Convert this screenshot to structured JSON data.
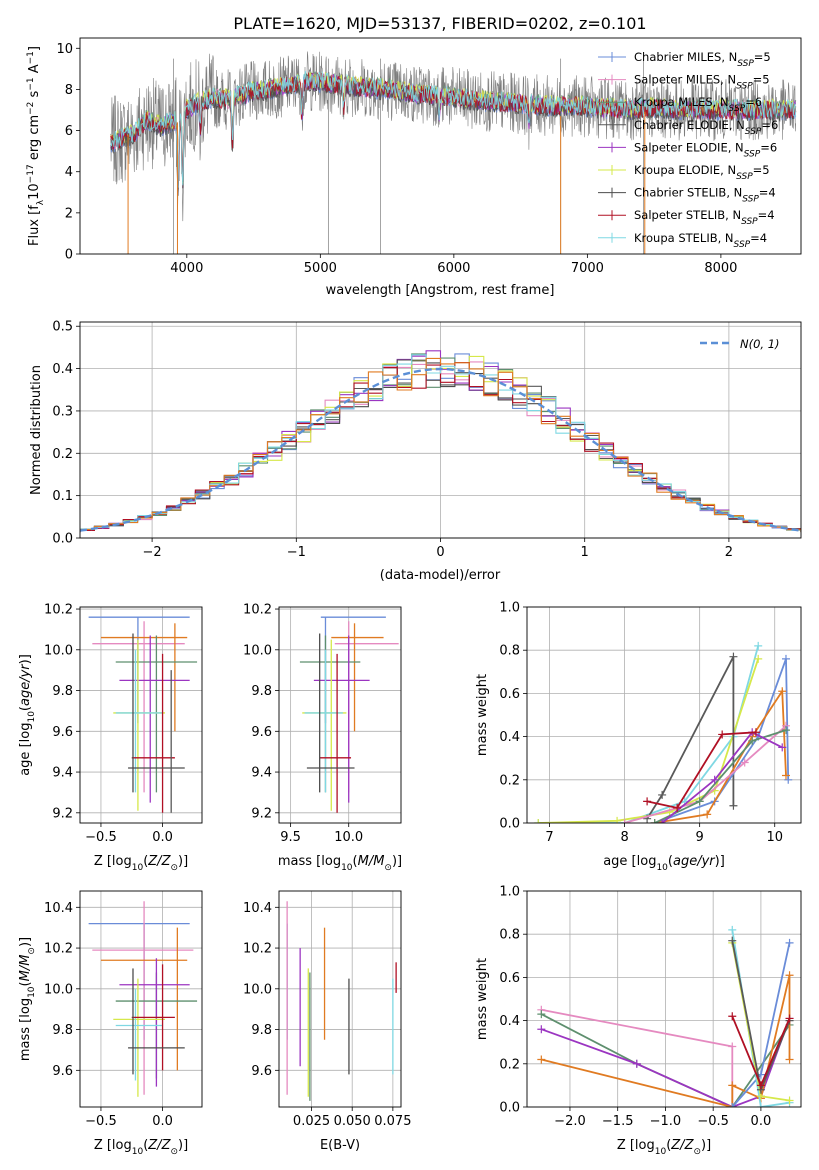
{
  "title": "PLATE=1620, MJD=53137, FIBERID=0202, z=0.101",
  "colors": {
    "Chabrier MILES": "#6a8cd8",
    "Salpeter MILES": "#e58ac0",
    "Kroupa MILES": "#5e8f6e",
    "Chabrier ELODIE": "#595959",
    "Salpeter ELODIE": "#9b35c1",
    "Kroupa ELODIE": "#d6e84a",
    "Chabrier STELIB": "#4d4d4d",
    "Salpeter STELIB": "#b01024",
    "Kroupa STELIB": "#7fd8e3",
    "extra_orange": "#e07b22",
    "normal_curve": "#5b8fd6"
  },
  "chart_data": [
    {
      "id": "spectrum",
      "type": "line",
      "xlabel": "wavelength [Angstrom, rest frame]",
      "ylabel": "Flux [f_λ 10^-17 erg cm^-2 s^-1 A^-1]",
      "xlim": [
        3200,
        8600
      ],
      "ylim": [
        0,
        10.5
      ],
      "xticks": [
        4000,
        5000,
        6000,
        7000,
        8000
      ],
      "yticks": [
        0,
        2,
        4,
        6,
        8,
        10
      ],
      "legend": "upper right",
      "legend_entries": [
        {
          "model": "Chabrier MILES",
          "nssp": "5"
        },
        {
          "model": "Salpeter MILES",
          "nssp": "5"
        },
        {
          "model": "Kroupa MILES",
          "nssp": "6"
        },
        {
          "model": "Chabrier ELODIE",
          "nssp": "6"
        },
        {
          "model": "Salpeter ELODIE",
          "nssp": "6"
        },
        {
          "model": "Kroupa ELODIE",
          "nssp": "5"
        },
        {
          "model": "Chabrier STELIB",
          "nssp": "4"
        },
        {
          "model": "Salpeter STELIB",
          "nssp": "4"
        },
        {
          "model": "Kroupa STELIB",
          "nssp": "4"
        }
      ],
      "continuum_points": [
        [
          3430,
          5.4
        ],
        [
          3600,
          5.8
        ],
        [
          3700,
          6.5
        ],
        [
          3800,
          6.2
        ],
        [
          3950,
          6.6
        ],
        [
          4000,
          7.0
        ],
        [
          4100,
          7.4
        ],
        [
          4200,
          7.6
        ],
        [
          4300,
          7.5
        ],
        [
          4500,
          7.9
        ],
        [
          4700,
          8.1
        ],
        [
          4900,
          8.4
        ],
        [
          5100,
          8.3
        ],
        [
          5300,
          8.1
        ],
        [
          5500,
          8.0
        ],
        [
          5700,
          7.8
        ],
        [
          5900,
          7.7
        ],
        [
          6100,
          7.5
        ],
        [
          6300,
          7.4
        ],
        [
          6500,
          7.3
        ],
        [
          6700,
          7.2
        ],
        [
          6900,
          7.2
        ],
        [
          7100,
          7.1
        ],
        [
          7300,
          7.0
        ],
        [
          7500,
          7.1
        ],
        [
          7700,
          7.0
        ],
        [
          7900,
          7.0
        ],
        [
          8100,
          7.0
        ],
        [
          8300,
          7.0
        ],
        [
          8500,
          7.0
        ]
      ]
    },
    {
      "id": "residuals",
      "type": "histogram",
      "xlabel": "(data-model)/error",
      "ylabel": "Normed distribution",
      "xlim": [
        -2.5,
        2.5
      ],
      "ylim": [
        0,
        0.51
      ],
      "xticks": [
        -2,
        -1,
        0,
        1,
        2
      ],
      "yticks": [
        0.0,
        0.1,
        0.2,
        0.3,
        0.4,
        0.5
      ],
      "legend": "upper right",
      "normal_label": "N(0, 1)",
      "bin_width": 0.1
    },
    {
      "id": "age_vs_Z",
      "type": "errorbar",
      "xlabel": "Z [log10(Z/Z⊙)]",
      "ylabel": "age [log10(age/yr)]",
      "xlim": [
        -0.67,
        0.32
      ],
      "ylim": [
        9.15,
        10.21
      ],
      "xticks": [
        -0.5,
        0.0
      ],
      "yticks": [
        9.2,
        9.4,
        9.6,
        9.8,
        10.0,
        10.2
      ],
      "points": [
        {
          "model": "Chabrier MILES",
          "x": -0.2,
          "xlo": -0.6,
          "xhi": 0.22,
          "y": 10.16,
          "ylo": 9.64,
          "yhi": 10.16
        },
        {
          "model": "Salpeter MILES",
          "x": -0.15,
          "xlo": -0.57,
          "xhi": 0.18,
          "y": 10.03,
          "ylo": 9.3,
          "yhi": 10.14
        },
        {
          "model": "extra_orange",
          "x": 0.1,
          "xlo": -0.5,
          "xhi": 0.2,
          "y": 10.06,
          "ylo": 9.6,
          "yhi": 10.13
        },
        {
          "model": "Kroupa MILES",
          "x": -0.05,
          "xlo": -0.38,
          "xhi": 0.28,
          "y": 9.94,
          "ylo": 9.3,
          "yhi": 10.07
        },
        {
          "model": "Salpeter ELODIE",
          "x": -0.1,
          "xlo": -0.35,
          "xhi": 0.22,
          "y": 9.85,
          "ylo": 9.25,
          "yhi": 10.07
        },
        {
          "model": "Kroupa ELODIE",
          "x": -0.2,
          "xlo": -0.4,
          "xhi": 0.02,
          "y": 9.69,
          "ylo": 9.21,
          "yhi": 10.05
        },
        {
          "model": "Kroupa STELIB",
          "x": -0.22,
          "xlo": -0.38,
          "xhi": 0.0,
          "y": 9.69,
          "ylo": 9.3,
          "yhi": 10.0
        },
        {
          "model": "Salpeter STELIB",
          "x": 0.0,
          "xlo": -0.25,
          "xhi": 0.1,
          "y": 9.47,
          "ylo": 9.2,
          "yhi": 9.98
        },
        {
          "model": "Chabrier STELIB",
          "x": -0.24,
          "xlo": -0.28,
          "xhi": 0.18,
          "y": 9.42,
          "ylo": 9.3,
          "yhi": 10.08
        },
        {
          "model": "Chabrier ELODIE",
          "x": 0.07,
          "xlo": 0.07,
          "xhi": 0.07,
          "y": 9.6,
          "ylo": 9.2,
          "yhi": 9.9
        }
      ]
    },
    {
      "id": "age_vs_mass",
      "type": "errorbar",
      "xlabel": "mass [log10(M/M⊙)]",
      "ylabel": "",
      "xlim": [
        9.4,
        10.45
      ],
      "ylim": [
        9.15,
        10.21
      ],
      "xticks": [
        9.5,
        10.0
      ],
      "yticks": [
        9.2,
        9.4,
        9.6,
        9.8,
        10.0,
        10.2
      ],
      "points": [
        {
          "model": "Chabrier MILES",
          "x": 9.8,
          "xlo": 9.76,
          "xhi": 10.32,
          "y": 10.16,
          "ylo": 9.64,
          "yhi": 10.16
        },
        {
          "model": "Salpeter MILES",
          "x": 10.0,
          "xlo": 9.88,
          "xhi": 10.43,
          "y": 10.03,
          "ylo": 9.3,
          "yhi": 10.14
        },
        {
          "model": "extra_orange",
          "x": 10.05,
          "xlo": 9.85,
          "xhi": 10.3,
          "y": 10.06,
          "ylo": 9.6,
          "yhi": 10.13
        },
        {
          "model": "Kroupa MILES",
          "x": 9.8,
          "xlo": 9.58,
          "xhi": 10.1,
          "y": 9.94,
          "ylo": 9.3,
          "yhi": 10.07
        },
        {
          "model": "Salpeter ELODIE",
          "x": 10.0,
          "xlo": 9.7,
          "xhi": 10.18,
          "y": 9.85,
          "ylo": 9.25,
          "yhi": 10.07
        },
        {
          "model": "Kroupa ELODIE",
          "x": 9.85,
          "xlo": 9.6,
          "xhi": 9.98,
          "y": 9.69,
          "ylo": 9.21,
          "yhi": 10.05
        },
        {
          "model": "Kroupa STELIB",
          "x": 9.8,
          "xlo": 9.62,
          "xhi": 9.95,
          "y": 9.69,
          "ylo": 9.3,
          "yhi": 10.0
        },
        {
          "model": "Salpeter STELIB",
          "x": 9.9,
          "xlo": 9.75,
          "xhi": 10.02,
          "y": 9.47,
          "ylo": 9.2,
          "yhi": 9.98
        },
        {
          "model": "Chabrier STELIB",
          "x": 9.75,
          "xlo": 9.64,
          "xhi": 10.05,
          "y": 9.42,
          "ylo": 9.3,
          "yhi": 10.08
        }
      ]
    },
    {
      "id": "weight_vs_age",
      "type": "line",
      "xlabel": "age [log10(age/yr)]",
      "ylabel": "mass weight",
      "xlim": [
        6.7,
        10.35
      ],
      "ylim": [
        0,
        1.0
      ],
      "xticks": [
        7,
        8,
        9,
        10
      ],
      "yticks": [
        0.0,
        0.2,
        0.4,
        0.6,
        0.8,
        1.0
      ],
      "series": [
        {
          "model": "Kroupa STELIB",
          "x": [
            6.85,
            8.0,
            8.8,
            9.45,
            9.78
          ],
          "y": [
            0.0,
            0.0,
            0.1,
            0.4,
            0.82
          ]
        },
        {
          "model": "Kroupa ELODIE",
          "x": [
            6.85,
            7.9,
            8.6,
            9.2,
            9.78
          ],
          "y": [
            0.0,
            0.01,
            0.05,
            0.15,
            0.76
          ]
        },
        {
          "model": "Chabrier ELODIE",
          "x": [
            8.3,
            8.5,
            9.45,
            9.45
          ],
          "y": [
            0.02,
            0.13,
            0.77,
            0.08
          ]
        },
        {
          "model": "Chabrier MILES",
          "x": [
            8.4,
            9.2,
            9.78,
            10.15,
            10.18
          ],
          "y": [
            0.0,
            0.1,
            0.4,
            0.76,
            0.2
          ]
        },
        {
          "model": "extra_orange",
          "x": [
            8.4,
            9.1,
            9.7,
            10.1,
            10.15
          ],
          "y": [
            0.0,
            0.04,
            0.4,
            0.61,
            0.22
          ]
        },
        {
          "model": "Salpeter MILES",
          "x": [
            8.0,
            9.0,
            9.6,
            10.15
          ],
          "y": [
            0.0,
            0.1,
            0.28,
            0.45
          ]
        },
        {
          "model": "Kroupa MILES",
          "x": [
            8.4,
            9.0,
            9.7,
            10.15
          ],
          "y": [
            0.0,
            0.1,
            0.38,
            0.43
          ]
        },
        {
          "model": "Salpeter ELODIE",
          "x": [
            8.5,
            9.2,
            9.7,
            10.1
          ],
          "y": [
            0.0,
            0.2,
            0.42,
            0.35
          ]
        },
        {
          "model": "Salpeter STELIB",
          "x": [
            8.3,
            8.7,
            9.3,
            9.75
          ],
          "y": [
            0.1,
            0.07,
            0.41,
            0.42
          ]
        }
      ]
    },
    {
      "id": "mass_vs_Z",
      "type": "errorbar",
      "xlabel": "Z [log10(Z/Z⊙)]",
      "ylabel": "mass [log10(M/M⊙)]",
      "xlim": [
        -0.67,
        0.32
      ],
      "ylim": [
        9.42,
        10.48
      ],
      "xticks": [
        -0.5,
        0.0
      ],
      "yticks": [
        9.6,
        9.8,
        10.0,
        10.2,
        10.4
      ],
      "points": [
        {
          "model": "Chabrier MILES",
          "x": -0.15,
          "xlo": -0.6,
          "xhi": 0.22,
          "y": 10.32,
          "ylo": 9.75,
          "yhi": 10.32
        },
        {
          "model": "Salpeter MILES",
          "x": -0.15,
          "xlo": -0.57,
          "xhi": 0.25,
          "y": 10.19,
          "ylo": 9.48,
          "yhi": 10.43
        },
        {
          "model": "extra_orange",
          "x": 0.12,
          "xlo": -0.5,
          "xhi": 0.2,
          "y": 10.14,
          "ylo": 9.6,
          "yhi": 10.3
        },
        {
          "model": "Kroupa MILES",
          "x": -0.05,
          "xlo": -0.38,
          "xhi": 0.28,
          "y": 9.94,
          "ylo": 9.56,
          "yhi": 10.08
        },
        {
          "model": "Salpeter ELODIE",
          "x": -0.05,
          "xlo": -0.35,
          "xhi": 0.22,
          "y": 10.02,
          "ylo": 9.52,
          "yhi": 10.15
        },
        {
          "model": "Kroupa ELODIE",
          "x": -0.2,
          "xlo": -0.4,
          "xhi": 0.02,
          "y": 9.85,
          "ylo": 9.47,
          "yhi": 10.05
        },
        {
          "model": "Kroupa STELIB",
          "x": -0.22,
          "xlo": -0.38,
          "xhi": 0.0,
          "y": 9.82,
          "ylo": 9.55,
          "yhi": 10.0
        },
        {
          "model": "Salpeter STELIB",
          "x": 0.0,
          "xlo": -0.25,
          "xhi": 0.1,
          "y": 9.86,
          "ylo": 9.6,
          "yhi": 10.12
        },
        {
          "model": "Chabrier STELIB",
          "x": -0.24,
          "xlo": -0.28,
          "xhi": 0.18,
          "y": 9.71,
          "ylo": 9.58,
          "yhi": 10.1
        }
      ]
    },
    {
      "id": "mass_vs_ebv",
      "type": "errorbar",
      "xlabel": "E(B-V)",
      "ylabel": "",
      "xlim": [
        0.005,
        0.08
      ],
      "ylim": [
        9.42,
        10.48
      ],
      "xticks": [
        0.025,
        0.05,
        0.075
      ],
      "yticks": [
        9.6,
        9.8,
        10.0,
        10.2,
        10.4
      ],
      "points": [
        {
          "model": "Chabrier MILES",
          "x": 0.01,
          "ylo": 9.75,
          "yhi": 10.32
        },
        {
          "model": "Salpeter MILES",
          "x": 0.01,
          "ylo": 9.48,
          "yhi": 10.43
        },
        {
          "model": "Salpeter ELODIE",
          "x": 0.018,
          "ylo": 9.62,
          "yhi": 10.2
        },
        {
          "model": "Kroupa ELODIE",
          "x": 0.023,
          "ylo": 9.47,
          "yhi": 10.1
        },
        {
          "model": "Kroupa MILES",
          "x": 0.024,
          "ylo": 9.45,
          "yhi": 10.08
        },
        {
          "model": "extra_orange",
          "x": 0.033,
          "ylo": 9.75,
          "yhi": 10.3
        },
        {
          "model": "Chabrier STELIB",
          "x": 0.048,
          "ylo": 9.58,
          "yhi": 10.05
        },
        {
          "model": "Kroupa STELIB",
          "x": 0.075,
          "ylo": 9.58,
          "yhi": 10.05
        },
        {
          "model": "Salpeter STELIB",
          "x": 0.077,
          "ylo": 9.98,
          "yhi": 10.13
        }
      ]
    },
    {
      "id": "weight_vs_Z",
      "type": "line",
      "xlabel": "Z [log10(Z/Z⊙)]",
      "ylabel": "mass weight",
      "xlim": [
        -2.45,
        0.42
      ],
      "ylim": [
        0,
        1.0
      ],
      "xticks": [
        -2.0,
        -1.5,
        -1.0,
        -0.5,
        0.0
      ],
      "yticks": [
        0.0,
        0.2,
        0.4,
        0.6,
        0.8,
        1.0
      ],
      "series": [
        {
          "model": "Salpeter MILES",
          "x": [
            -2.3,
            -0.3,
            -0.3
          ],
          "y": [
            0.45,
            0.28,
            0.0
          ]
        },
        {
          "model": "Kroupa MILES",
          "x": [
            -2.3,
            -1.3,
            -0.3,
            0.3
          ],
          "y": [
            0.43,
            0.2,
            0.0,
            0.38
          ]
        },
        {
          "model": "Salpeter ELODIE",
          "x": [
            -2.3,
            -1.3,
            -0.3,
            0.0,
            0.3
          ],
          "y": [
            0.36,
            0.2,
            0.0,
            0.05,
            0.41
          ]
        },
        {
          "model": "extra_orange",
          "x": [
            -2.3,
            -0.3,
            -0.3,
            0.0,
            0.3,
            0.3
          ],
          "y": [
            0.22,
            0.0,
            0.1,
            0.04,
            0.61,
            0.22
          ]
        },
        {
          "model": "Chabrier MILES",
          "x": [
            -0.3,
            0.0,
            0.3
          ],
          "y": [
            0.0,
            0.15,
            0.76
          ]
        },
        {
          "model": "Kroupa STELIB",
          "x": [
            -0.3,
            0.0,
            0.3
          ],
          "y": [
            0.82,
            0.0,
            0.02
          ]
        },
        {
          "model": "Kroupa ELODIE",
          "x": [
            -0.3,
            0.0,
            0.3
          ],
          "y": [
            0.76,
            0.05,
            0.03
          ]
        },
        {
          "model": "Chabrier ELODIE",
          "x": [
            -0.3,
            0.0,
            0.3
          ],
          "y": [
            0.77,
            0.08,
            0.4
          ]
        },
        {
          "model": "Salpeter STELIB",
          "x": [
            -0.3,
            0.0,
            0.3
          ],
          "y": [
            0.42,
            0.1,
            0.41
          ]
        }
      ]
    }
  ]
}
